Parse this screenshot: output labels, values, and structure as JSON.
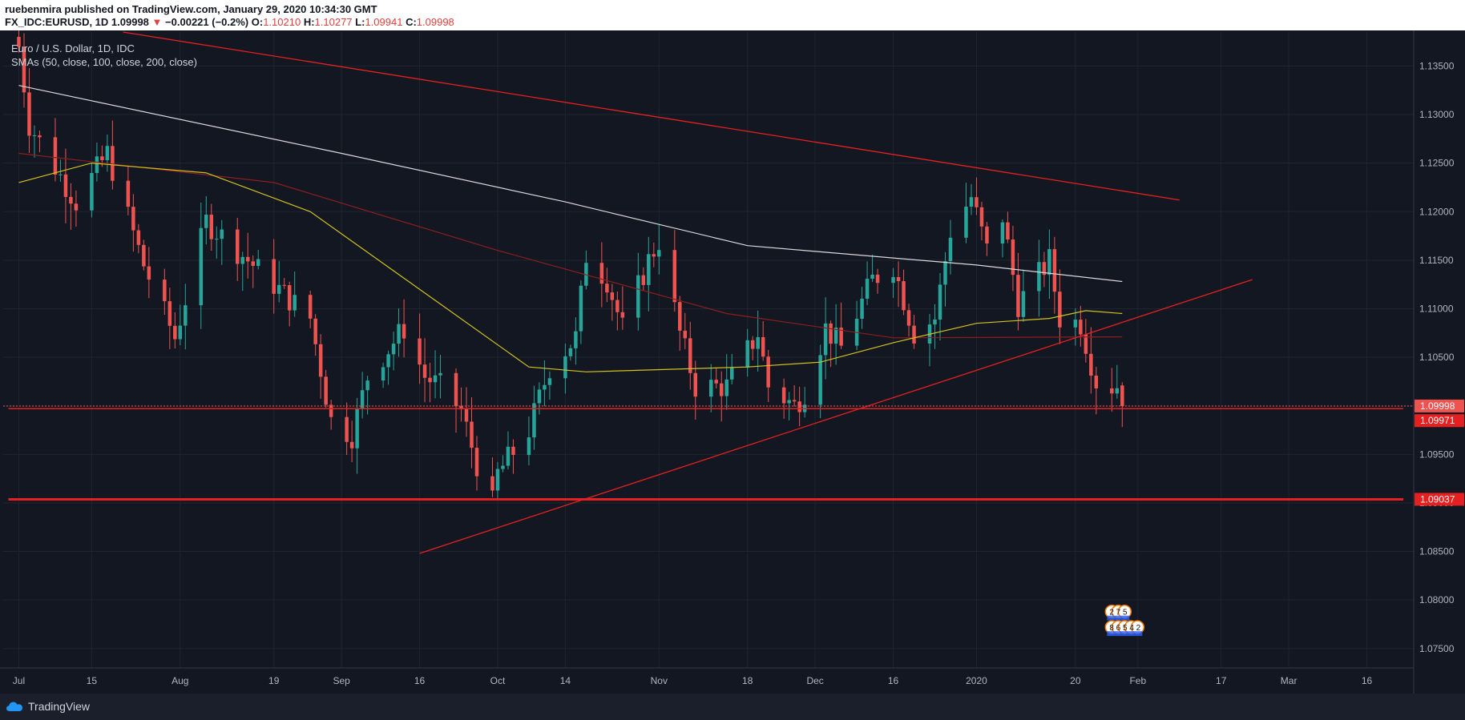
{
  "header": {
    "publisher_line": "ruebenmira published on TradingView.com, January 29, 2020 10:34:30 GMT",
    "symbol": "FX_IDC:EURUSD, 1D",
    "last": "1.09998",
    "change_arrow": "▼",
    "change": "−0.00221 (−0.2%)",
    "o_label": "O:",
    "o_value": "1.10210",
    "h_label": "H:",
    "h_value": "1.10277",
    "l_label": "L:",
    "l_value": "1.09941",
    "c_label": "C:",
    "c_value": "1.09998"
  },
  "legend": {
    "title": "Euro / U.S. Dollar, 1D, IDC",
    "indicator": "SMAs (50, close, 100, close, 200, close)"
  },
  "footer": {
    "brand": "TradingView",
    "logo_icon": "tradingview-cloud-icon"
  },
  "colors": {
    "background": "#131722",
    "up": "#26a69a",
    "down": "#ef5350",
    "sma50": "#d4c21c",
    "sma100": "#8b1f1f",
    "sma200": "#d9d9d9",
    "trendline": "#e62020",
    "grid": "#1f2430"
  },
  "chart_data": {
    "type": "candlestick",
    "y_axis": {
      "min": 1.073,
      "max": 1.1385,
      "ticks": [
        "1.13500",
        "1.13000",
        "1.12500",
        "1.12000",
        "1.11500",
        "1.11000",
        "1.10500",
        "1.10000",
        "1.09500",
        "1.09000",
        "1.08500",
        "1.08000",
        "1.07500"
      ]
    },
    "x_axis": {
      "ticks": [
        {
          "label": "Jul",
          "date": "2019-07-01"
        },
        {
          "label": "15",
          "date": "2019-07-15"
        },
        {
          "label": "Aug",
          "date": "2019-08-01"
        },
        {
          "label": "19",
          "date": "2019-08-19"
        },
        {
          "label": "Sep",
          "date": "2019-09-01"
        },
        {
          "label": "16",
          "date": "2019-09-16"
        },
        {
          "label": "Oct",
          "date": "2019-10-01"
        },
        {
          "label": "14",
          "date": "2019-10-14"
        },
        {
          "label": "Nov",
          "date": "2019-11-01"
        },
        {
          "label": "18",
          "date": "2019-11-18"
        },
        {
          "label": "Dec",
          "date": "2019-12-01"
        },
        {
          "label": "16",
          "date": "2019-12-16"
        },
        {
          "label": "2020",
          "date": "2020-01-01"
        },
        {
          "label": "20",
          "date": "2020-01-20"
        },
        {
          "label": "Feb",
          "date": "2020-02-01"
        },
        {
          "label": "17",
          "date": "2020-02-17"
        },
        {
          "label": "Mar",
          "date": "2020-03-01"
        },
        {
          "label": "16",
          "date": "2020-03-16"
        }
      ]
    },
    "key_points": [
      {
        "date": "2019-07-01",
        "close": 1.137
      },
      {
        "date": "2019-07-03",
        "close": 1.129
      },
      {
        "date": "2019-07-12",
        "close": 1.121
      },
      {
        "date": "2019-07-18",
        "close": 1.126
      },
      {
        "date": "2019-07-25",
        "close": 1.1145
      },
      {
        "date": "2019-07-31",
        "close": 1.107
      },
      {
        "date": "2019-08-06",
        "close": 1.119
      },
      {
        "date": "2019-08-14",
        "close": 1.115
      },
      {
        "date": "2019-08-26",
        "close": 1.109
      },
      {
        "date": "2019-08-30",
        "close": 1.0985
      },
      {
        "date": "2019-09-03",
        "close": 1.097
      },
      {
        "date": "2019-09-06",
        "close": 1.103
      },
      {
        "date": "2019-09-13",
        "close": 1.108
      },
      {
        "date": "2019-09-17",
        "close": 1.103
      },
      {
        "date": "2019-09-20",
        "close": 1.102
      },
      {
        "date": "2019-09-24",
        "close": 1.0995
      },
      {
        "date": "2019-09-27",
        "close": 1.094
      },
      {
        "date": "2019-09-30",
        "close": 1.0899
      },
      {
        "date": "2019-10-01",
        "close": 1.093
      },
      {
        "date": "2019-10-07",
        "close": 1.0975
      },
      {
        "date": "2019-10-11",
        "close": 1.104
      },
      {
        "date": "2019-10-16",
        "close": 1.107
      },
      {
        "date": "2019-10-18",
        "close": 1.1155
      },
      {
        "date": "2019-10-22",
        "close": 1.113
      },
      {
        "date": "2019-10-25",
        "close": 1.108
      },
      {
        "date": "2019-10-30",
        "close": 1.115
      },
      {
        "date": "2019-11-01",
        "close": 1.117
      },
      {
        "date": "2019-11-05",
        "close": 1.1075
      },
      {
        "date": "2019-11-08",
        "close": 1.102
      },
      {
        "date": "2019-11-14",
        "close": 1.102
      },
      {
        "date": "2019-11-20",
        "close": 1.1075
      },
      {
        "date": "2019-11-22",
        "close": 1.102
      },
      {
        "date": "2019-11-27",
        "close": 1.1
      },
      {
        "date": "2019-11-29",
        "close": 1.1015
      },
      {
        "date": "2019-12-03",
        "close": 1.108
      },
      {
        "date": "2019-12-06",
        "close": 1.106
      },
      {
        "date": "2019-12-12",
        "close": 1.113
      },
      {
        "date": "2019-12-16",
        "close": 1.1145
      },
      {
        "date": "2019-12-20",
        "close": 1.1075
      },
      {
        "date": "2019-12-24",
        "close": 1.109
      },
      {
        "date": "2019-12-27",
        "close": 1.118
      },
      {
        "date": "2019-12-31",
        "close": 1.1215
      },
      {
        "date": "2020-01-03",
        "close": 1.116
      },
      {
        "date": "2020-01-06",
        "close": 1.1195
      },
      {
        "date": "2020-01-09",
        "close": 1.1105
      },
      {
        "date": "2020-01-15",
        "close": 1.115
      },
      {
        "date": "2020-01-17",
        "close": 1.109
      },
      {
        "date": "2020-01-21",
        "close": 1.1085
      },
      {
        "date": "2020-01-24",
        "close": 1.1025
      },
      {
        "date": "2020-01-27",
        "close": 1.102
      },
      {
        "date": "2020-01-28",
        "close": 1.1021
      },
      {
        "date": "2020-01-29",
        "close": 1.09998
      }
    ],
    "sma200": [
      {
        "date": "2019-07-01",
        "value": 1.133
      },
      {
        "date": "2019-09-01",
        "value": 1.126
      },
      {
        "date": "2019-10-14",
        "value": 1.121
      },
      {
        "date": "2019-11-18",
        "value": 1.1165
      },
      {
        "date": "2020-01-01",
        "value": 1.1145
      },
      {
        "date": "2020-01-29",
        "value": 1.1128
      }
    ],
    "sma100": [
      {
        "date": "2019-07-01",
        "value": 1.126
      },
      {
        "date": "2019-08-19",
        "value": 1.123
      },
      {
        "date": "2019-10-01",
        "value": 1.116
      },
      {
        "date": "2019-11-14",
        "value": 1.1095
      },
      {
        "date": "2019-12-16",
        "value": 1.107
      },
      {
        "date": "2020-01-29",
        "value": 1.1071
      }
    ],
    "sma50": [
      {
        "date": "2019-07-01",
        "value": 1.123
      },
      {
        "date": "2019-07-15",
        "value": 1.125
      },
      {
        "date": "2019-08-06",
        "value": 1.124
      },
      {
        "date": "2019-08-26",
        "value": 1.12
      },
      {
        "date": "2019-09-16",
        "value": 1.112
      },
      {
        "date": "2019-10-07",
        "value": 1.104
      },
      {
        "date": "2019-10-18",
        "value": 1.1035
      },
      {
        "date": "2019-11-18",
        "value": 1.104
      },
      {
        "date": "2019-12-02",
        "value": 1.1045
      },
      {
        "date": "2019-12-16",
        "value": 1.1065
      },
      {
        "date": "2020-01-01",
        "value": 1.1085
      },
      {
        "date": "2020-01-15",
        "value": 1.109
      },
      {
        "date": "2020-01-22",
        "value": 1.1098
      },
      {
        "date": "2020-01-29",
        "value": 1.1095
      }
    ],
    "trendlines": [
      {
        "name": "falling-resistance",
        "from": {
          "date": "2019-07-21",
          "price": 1.1385
        },
        "to": {
          "date": "2020-02-09",
          "price": 1.1212
        }
      },
      {
        "name": "rising-support",
        "from": {
          "date": "2019-09-16",
          "price": 1.0848
        },
        "to": {
          "date": "2020-02-23",
          "price": 1.113
        }
      },
      {
        "name": "support-horizontal",
        "from": {
          "date": "2019-06-29",
          "price": 1.09037
        },
        "to": {
          "date": "2020-03-23",
          "price": 1.09037
        }
      },
      {
        "name": "price-horizontal",
        "from": {
          "date": "2019-06-29",
          "price": 1.09971
        },
        "to": {
          "date": "2020-03-23",
          "price": 1.09971
        }
      }
    ],
    "price_labels": [
      {
        "text": "1.09998",
        "price": 1.09998,
        "color": "#ef5350"
      },
      {
        "text": "1.09971",
        "price": 1.09971,
        "color": "#e62020"
      },
      {
        "text": "1.09037",
        "price": 1.09037,
        "color": "#e62020"
      }
    ],
    "event_markers": {
      "row1": "2 7 5",
      "row2": "8 6 5 4 2"
    }
  }
}
